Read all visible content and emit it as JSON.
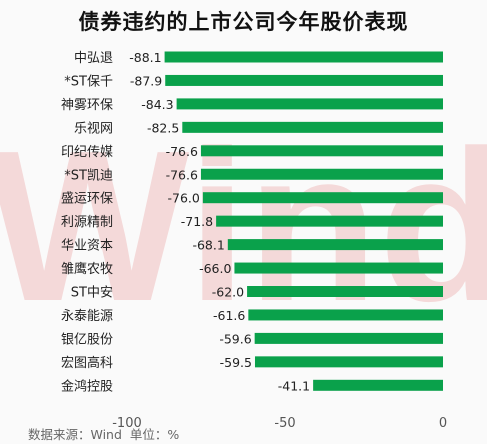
{
  "header": {
    "title": "债券违约的上市公司今年股价表现"
  },
  "footer": {
    "source": "数据来源：Wind",
    "unit": "单位：%"
  },
  "watermark": "Wind",
  "colors": {
    "bar": "#0aa14b",
    "watermark": "#f3cfcf"
  },
  "chart_data": {
    "type": "bar",
    "orientation": "horizontal",
    "title": "债券违约的上市公司今年股价表现",
    "categories": [
      "中弘退",
      "*ST保千",
      "神雾环保",
      "乐视网",
      "印纪传媒",
      "*ST凯迪",
      "盛运环保",
      "利源精制",
      "华业资本",
      "雏鹰农牧",
      "ST中安",
      "永泰能源",
      "银亿股份",
      "宏图高科",
      "金鸿控股"
    ],
    "values": [
      -88.1,
      -87.9,
      -84.3,
      -82.5,
      -76.6,
      -76.6,
      -76.0,
      -71.8,
      -68.1,
      -66.0,
      -62.0,
      -61.6,
      -59.6,
      -59.5,
      -41.1
    ],
    "value_labels": [
      "-88.1",
      "-87.9",
      "-84.3",
      "-82.5",
      "-76.6",
      "-76.6",
      "-76.0",
      "-71.8",
      "-68.1",
      "-66.0",
      "-62.0",
      "-61.6",
      "-59.6",
      "-59.5",
      "-41.1"
    ],
    "xlim": [
      -100,
      0
    ],
    "xticks": [
      -100,
      -50,
      0
    ],
    "xtick_labels": [
      "-100",
      "-50",
      "0"
    ],
    "grid": false,
    "legend": "none"
  }
}
